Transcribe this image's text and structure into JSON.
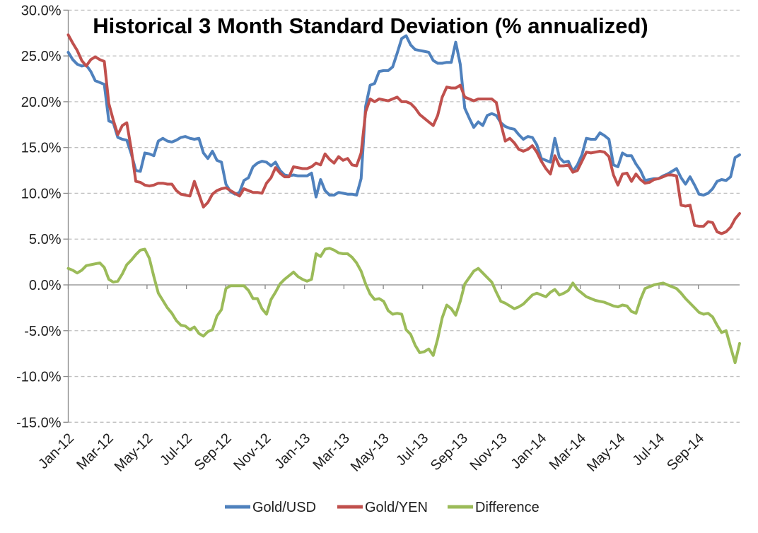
{
  "chart_data": {
    "type": "line",
    "title": "Historical 3 Month Standard Deviation (% annualized)",
    "xlabel": "",
    "ylabel": "",
    "y_axis": {
      "min": -15,
      "max": 30,
      "step": 5,
      "tick_labels": [
        "30.0%",
        "25.0%",
        "20.0%",
        "15.0%",
        "10.0%",
        "5.0%",
        "0.0%",
        "-5.0%",
        "-10.0%",
        "-15.0%"
      ],
      "tick_values": [
        30,
        25,
        20,
        15,
        10,
        5,
        0,
        -5,
        -10,
        -15
      ]
    },
    "x_axis": {
      "tick_labels": [
        "Jan-12",
        "Mar-12",
        "May-12",
        "Jul-12",
        "Sep-12",
        "Nov-12",
        "Jan-13",
        "Mar-13",
        "May-13",
        "Jul-13",
        "Sep-13",
        "Nov-13",
        "Jan-14",
        "Mar-14",
        "May-14",
        "Jul-14",
        "Sep-14"
      ],
      "months_between_ticks": 2,
      "range_note": "weekly data from Jan-12 to early Nov-14",
      "label_rotation_deg": -45
    },
    "grid": {
      "visible": true,
      "dashed": true,
      "color": "#bfbfbf"
    },
    "axis_color": "#898989",
    "background_color": "#ffffff",
    "legend": {
      "position": "bottom",
      "items": [
        "Gold/USD",
        "Gold/YEN",
        "Difference"
      ]
    },
    "sampling_interval": "weekly",
    "series": [
      {
        "name": "Gold/USD",
        "color": "#4F81BD",
        "values": [
          25.4,
          24.6,
          24.1,
          23.9,
          24.0,
          23.3,
          22.3,
          22.1,
          21.9,
          17.9,
          17.7,
          16.1,
          15.9,
          15.8,
          14.3,
          12.5,
          12.4,
          14.4,
          14.3,
          14.1,
          15.7,
          16.0,
          15.7,
          15.6,
          15.8,
          16.1,
          16.2,
          16.0,
          15.9,
          16.0,
          14.4,
          13.8,
          14.6,
          13.6,
          13.4,
          11.0,
          10.2,
          9.9,
          10.1,
          11.4,
          11.7,
          12.9,
          13.3,
          13.5,
          13.4,
          13.0,
          13.4,
          12.5,
          12.0,
          11.9,
          12.0,
          11.9,
          11.9,
          11.9,
          12.2,
          9.6,
          11.5,
          10.3,
          9.8,
          9.8,
          10.1,
          10.0,
          9.9,
          9.9,
          9.8,
          11.6,
          19.5,
          21.8,
          22.0,
          23.3,
          23.4,
          23.4,
          23.8,
          25.3,
          26.9,
          27.2,
          26.2,
          25.7,
          25.6,
          25.5,
          25.4,
          24.5,
          24.2,
          24.2,
          24.3,
          24.3,
          26.5,
          24.1,
          19.3,
          18.2,
          17.2,
          17.8,
          17.4,
          18.5,
          18.7,
          18.5,
          17.7,
          17.3,
          17.1,
          17.0,
          16.4,
          15.9,
          16.2,
          16.1,
          15.3,
          13.8,
          13.6,
          13.4,
          16.0,
          13.9,
          13.4,
          13.5,
          12.4,
          13.1,
          14.2,
          16.0,
          15.9,
          15.9,
          16.6,
          16.3,
          15.9,
          13.1,
          12.9,
          14.4,
          14.1,
          14.1,
          13.2,
          12.5,
          11.4,
          11.5,
          11.6,
          11.6,
          11.9,
          12.1,
          12.4,
          12.7,
          11.7,
          11.0,
          11.8,
          10.9,
          9.9,
          9.8,
          10.0,
          10.5,
          11.3,
          11.5,
          11.4,
          11.8,
          13.9,
          14.2
        ]
      },
      {
        "name": "Gold/YEN",
        "color": "#C0504D",
        "values": [
          27.3,
          26.4,
          25.6,
          24.5,
          23.9,
          24.6,
          24.9,
          24.6,
          24.4,
          19.8,
          18.0,
          16.4,
          17.4,
          17.7,
          14.8,
          11.3,
          11.2,
          10.9,
          10.8,
          10.9,
          11.1,
          11.1,
          11.0,
          11.0,
          10.3,
          9.9,
          9.8,
          9.7,
          11.3,
          9.9,
          8.5,
          9.0,
          9.9,
          10.3,
          10.5,
          10.6,
          10.3,
          10.0,
          9.7,
          10.5,
          10.3,
          10.1,
          10.1,
          10.0,
          11.1,
          11.7,
          12.8,
          12.2,
          11.8,
          11.8,
          12.9,
          12.8,
          12.7,
          12.7,
          12.9,
          13.3,
          13.1,
          14.3,
          13.7,
          13.3,
          14.0,
          13.6,
          13.8,
          13.1,
          13.0,
          14.4,
          18.9,
          20.3,
          20.0,
          20.3,
          20.2,
          20.1,
          20.3,
          20.5,
          20.0,
          20.0,
          19.8,
          19.3,
          18.6,
          18.2,
          17.8,
          17.4,
          18.5,
          20.5,
          21.6,
          21.5,
          21.5,
          21.8,
          20.5,
          20.3,
          20.1,
          20.3,
          20.3,
          20.3,
          20.3,
          19.9,
          17.6,
          15.7,
          16.0,
          15.5,
          14.8,
          14.6,
          14.8,
          15.2,
          14.5,
          13.5,
          12.7,
          12.1,
          14.1,
          13.0,
          13.0,
          13.1,
          12.3,
          12.5,
          13.5,
          14.5,
          14.4,
          14.5,
          14.6,
          14.5,
          14.0,
          12.0,
          10.9,
          12.1,
          12.2,
          11.3,
          12.1,
          11.5,
          11.1,
          11.2,
          11.5,
          11.6,
          11.8,
          12.0,
          12.0,
          11.9,
          8.7,
          8.6,
          8.7,
          6.5,
          6.4,
          6.4,
          6.9,
          6.8,
          5.8,
          5.6,
          5.8,
          6.3,
          7.2,
          7.8
        ]
      },
      {
        "name": "Difference",
        "color": "#9BBB59",
        "values": [
          1.8,
          1.6,
          1.3,
          1.6,
          2.1,
          2.2,
          2.3,
          2.4,
          1.9,
          0.6,
          0.3,
          0.4,
          1.2,
          2.2,
          2.7,
          3.3,
          3.8,
          3.9,
          2.9,
          0.9,
          -0.9,
          -1.7,
          -2.5,
          -3.1,
          -3.9,
          -4.4,
          -4.5,
          -4.9,
          -4.6,
          -5.3,
          -5.6,
          -5.1,
          -4.9,
          -3.4,
          -2.7,
          -0.4,
          -0.1,
          -0.1,
          -0.1,
          -0.1,
          -0.6,
          -1.5,
          -1.5,
          -2.6,
          -3.2,
          -1.6,
          -0.8,
          0.1,
          0.6,
          1.0,
          1.4,
          0.9,
          0.6,
          0.4,
          0.6,
          3.4,
          3.1,
          3.9,
          4.0,
          3.8,
          3.5,
          3.4,
          3.4,
          3.0,
          2.4,
          1.5,
          0.1,
          -1.0,
          -1.6,
          -1.5,
          -1.8,
          -2.8,
          -3.2,
          -3.1,
          -3.2,
          -4.9,
          -5.4,
          -6.6,
          -7.4,
          -7.3,
          -7.0,
          -7.7,
          -5.9,
          -3.6,
          -2.2,
          -2.6,
          -3.3,
          -1.8,
          0.1,
          0.8,
          1.5,
          1.8,
          1.3,
          0.8,
          0.3,
          -0.8,
          -1.8,
          -2.0,
          -2.3,
          -2.6,
          -2.4,
          -2.1,
          -1.6,
          -1.1,
          -0.9,
          -1.1,
          -1.3,
          -0.8,
          -0.5,
          -1.1,
          -0.9,
          -0.6,
          0.2,
          -0.5,
          -0.9,
          -1.3,
          -1.5,
          -1.7,
          -1.8,
          -1.9,
          -2.1,
          -2.3,
          -2.4,
          -2.2,
          -2.3,
          -2.9,
          -3.1,
          -1.6,
          -0.4,
          -0.2,
          0.0,
          0.1,
          0.2,
          0.0,
          -0.2,
          -0.4,
          -0.9,
          -1.5,
          -2.0,
          -2.5,
          -3.0,
          -3.2,
          -3.1,
          -3.5,
          -4.4,
          -5.2,
          -5.0,
          -6.8,
          -8.5,
          -6.4
        ]
      }
    ]
  }
}
